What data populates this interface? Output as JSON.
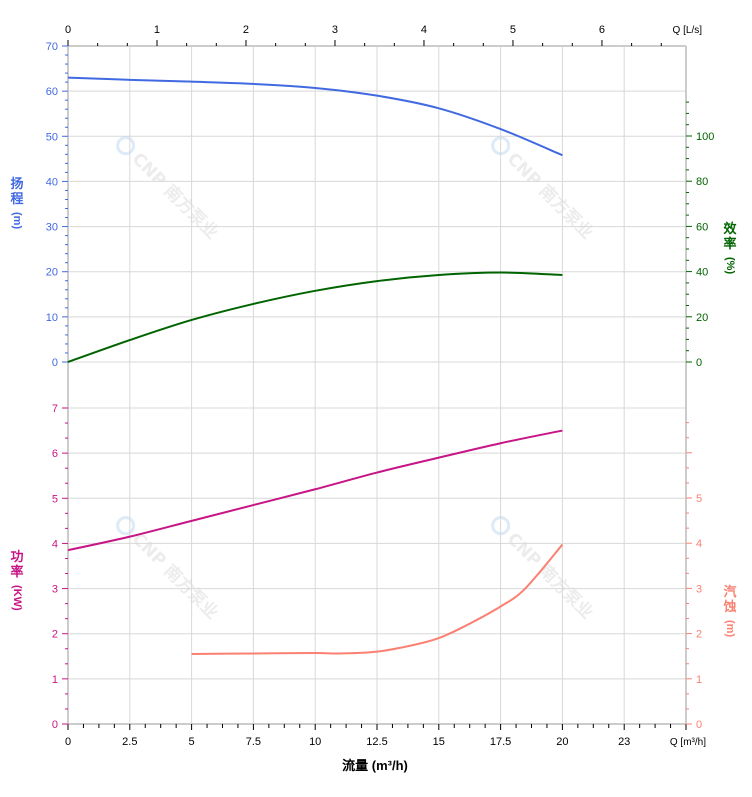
{
  "chart_data": {
    "type": "line",
    "xlabel": "流量 (m³/h)",
    "x_axis_bottom": {
      "unit_label": "Q [m³/h]",
      "ticks": [
        0,
        2.5,
        5,
        7.5,
        10,
        12.5,
        15,
        17.5,
        20,
        22.5
      ],
      "tick_labels": [
        "0",
        "2.5",
        "5",
        "7.5",
        "10",
        "12.5",
        "15",
        "17.5",
        "20",
        "23"
      ],
      "range": [
        0,
        25
      ]
    },
    "x_axis_top": {
      "unit_label": "Q [L/s]",
      "ticks": [
        0,
        1,
        2,
        3,
        4,
        5,
        6
      ],
      "tick_labels": [
        "0",
        "1",
        "2",
        "3",
        "4",
        "5",
        "6"
      ]
    },
    "axes": {
      "head": {
        "label_chars": [
          "扬",
          "程"
        ],
        "unit": "(m)",
        "range": [
          0,
          70
        ],
        "ticks": [
          0,
          10,
          20,
          30,
          40,
          50,
          60,
          70
        ],
        "color": "#4169e1"
      },
      "efficiency": {
        "label_chars": [
          "效",
          "率"
        ],
        "unit": "(%)",
        "range": [
          0,
          100
        ],
        "ticks": [
          0,
          20,
          40,
          60,
          80,
          100
        ],
        "color": "#006400"
      },
      "power": {
        "label_chars": [
          "功",
          "率"
        ],
        "unit": "(KW)",
        "range": [
          0,
          7
        ],
        "ticks": [
          0,
          1,
          2,
          3,
          4,
          5,
          6,
          7
        ],
        "color": "#c71585"
      },
      "npsh": {
        "label_chars": [
          "汽",
          "蚀"
        ],
        "unit": "(m)",
        "range": [
          0,
          5
        ],
        "ticks": [
          0,
          1,
          2,
          3,
          4,
          5
        ],
        "color": "#fa8072"
      }
    },
    "grid": true,
    "series": [
      {
        "axis": "head",
        "x": [
          0,
          2.5,
          5,
          7.5,
          10,
          12.5,
          15,
          17.5,
          20
        ],
        "y": [
          63,
          62.5,
          62.1,
          61.6,
          60.7,
          59,
          56.2,
          51.6,
          45.8
        ]
      },
      {
        "axis": "efficiency",
        "x": [
          0,
          2.5,
          5,
          7.5,
          10,
          12.5,
          15,
          17.5,
          20
        ],
        "y": [
          0,
          9.7,
          18.6,
          25.7,
          31.5,
          35.8,
          38.5,
          39.6,
          38.5
        ]
      },
      {
        "axis": "power",
        "x": [
          0,
          2.5,
          5,
          7.5,
          10,
          12.5,
          15,
          17.5,
          20
        ],
        "y": [
          3.85,
          4.15,
          4.5,
          4.85,
          5.2,
          5.57,
          5.9,
          6.22,
          6.5
        ]
      },
      {
        "axis": "npsh",
        "x": [
          5,
          7.5,
          10,
          11,
          12.5,
          14,
          15,
          16,
          17.5,
          18.5,
          20
        ],
        "y": [
          1.55,
          1.56,
          1.57,
          1.56,
          1.6,
          1.75,
          1.9,
          2.15,
          2.6,
          3.0,
          3.97
        ]
      }
    ],
    "watermark": "CNP 南方泵业"
  }
}
